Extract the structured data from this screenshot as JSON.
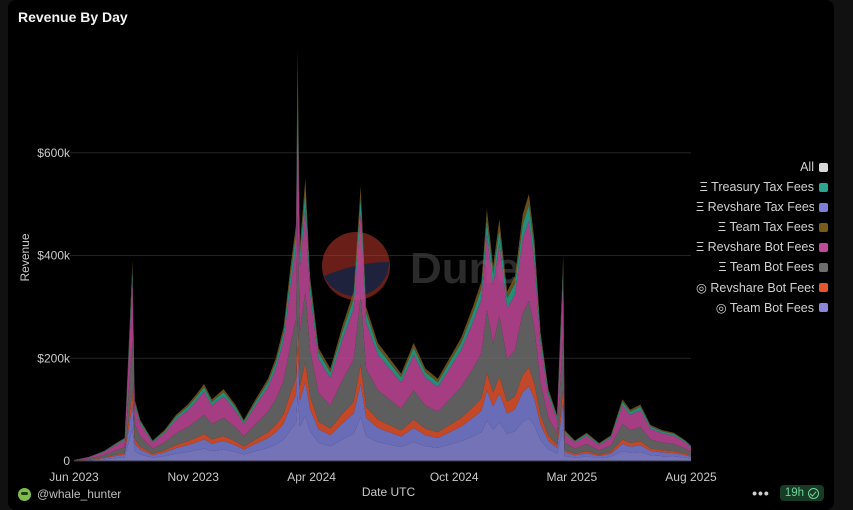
{
  "chart_title": "Revenue By Day",
  "watermark": {
    "text": "Dune",
    "icon": "dune-logo-icon"
  },
  "footer": {
    "user": "@whale_hunter",
    "more": "•••",
    "age": "19h",
    "status_icon": "check-circle-icon"
  },
  "colors": {
    "background": "#000000",
    "treasury_tax": "#2ba58f",
    "revshare_tax": "#7b7fd6",
    "team_tax": "#7a5a1d",
    "revshare_bot_eth": "#c2489a",
    "team_bot_eth": "#6e6e6e",
    "revshare_bot_sol": "#e5552f",
    "team_bot_sol": "#8a87d8"
  },
  "chart_data": {
    "type": "area",
    "title": "Revenue By Day",
    "xlabel": "Date UTC",
    "ylabel": "Revenue",
    "ylim": [
      0,
      800000
    ],
    "yticks": [
      0,
      200000,
      400000,
      600000
    ],
    "ytick_labels": [
      "0",
      "$200k",
      "$400k",
      "$600k"
    ],
    "xlim": [
      "2023-06-01",
      "2025-08-01"
    ],
    "xticks": [
      "2023-06-01",
      "2023-11-01",
      "2024-04-01",
      "2024-10-01",
      "2025-03-01",
      "2025-08-01"
    ],
    "xtick_labels": [
      "Jun 2023",
      "Nov 2023",
      "Apr 2024",
      "Oct 2024",
      "Mar 2025",
      "Aug 2025"
    ],
    "grid": true,
    "legend_position": "right",
    "legend": [
      {
        "label": "All",
        "color": "#d9d9d9"
      },
      {
        "label": "Ξ Treasury Tax Fees",
        "color": "#2ba58f"
      },
      {
        "label": "Ξ Revshare Tax Fees",
        "color": "#7b7fd6"
      },
      {
        "label": "Ξ Team Tax Fees",
        "color": "#7a5a1d"
      },
      {
        "label": "Ξ Revshare Bot Fees",
        "color": "#c2489a"
      },
      {
        "label": "Ξ Team Bot Fees",
        "color": "#6e6e6e"
      },
      {
        "label": "◎ Revshare Bot Fees",
        "color": "#e5552f"
      },
      {
        "label": "◎ Team Bot Fees",
        "color": "#8a87d8"
      }
    ],
    "stack_order": [
      "team_bot_sol",
      "revshare_tax",
      "revshare_bot_sol",
      "team_bot_eth",
      "revshare_bot_eth",
      "treasury_tax",
      "team_tax"
    ],
    "stack_shares": {
      "team_bot_sol": 0.16,
      "revshare_tax": 0.12,
      "revshare_bot_sol": 0.07,
      "team_bot_eth": 0.25,
      "revshare_bot_eth": 0.3,
      "treasury_tax": 0.06,
      "team_tax": 0.04
    },
    "total_series": [
      [
        "2023-06-01",
        2000
      ],
      [
        "2023-06-20",
        8000
      ],
      [
        "2023-07-10",
        20000
      ],
      [
        "2023-07-25",
        35000
      ],
      [
        "2023-08-05",
        45000
      ],
      [
        "2023-08-15",
        390000
      ],
      [
        "2023-08-18",
        120000
      ],
      [
        "2023-08-25",
        80000
      ],
      [
        "2023-09-10",
        40000
      ],
      [
        "2023-09-25",
        60000
      ],
      [
        "2023-10-10",
        90000
      ],
      [
        "2023-10-25",
        110000
      ],
      [
        "2023-11-05",
        130000
      ],
      [
        "2023-11-15",
        150000
      ],
      [
        "2023-11-25",
        120000
      ],
      [
        "2023-12-10",
        140000
      ],
      [
        "2023-12-25",
        110000
      ],
      [
        "2024-01-05",
        80000
      ],
      [
        "2024-01-20",
        120000
      ],
      [
        "2024-02-05",
        160000
      ],
      [
        "2024-02-15",
        200000
      ],
      [
        "2024-02-25",
        260000
      ],
      [
        "2024-03-05",
        380000
      ],
      [
        "2024-03-12",
        460000
      ],
      [
        "2024-03-14",
        800000
      ],
      [
        "2024-03-17",
        420000
      ],
      [
        "2024-03-24",
        550000
      ],
      [
        "2024-03-30",
        360000
      ],
      [
        "2024-04-10",
        220000
      ],
      [
        "2024-04-25",
        180000
      ],
      [
        "2024-05-10",
        260000
      ],
      [
        "2024-05-25",
        330000
      ],
      [
        "2024-06-03",
        535000
      ],
      [
        "2024-06-10",
        300000
      ],
      [
        "2024-06-25",
        230000
      ],
      [
        "2024-07-10",
        200000
      ],
      [
        "2024-07-25",
        170000
      ],
      [
        "2024-08-10",
        230000
      ],
      [
        "2024-08-25",
        180000
      ],
      [
        "2024-09-10",
        160000
      ],
      [
        "2024-09-25",
        200000
      ],
      [
        "2024-10-10",
        240000
      ],
      [
        "2024-10-25",
        300000
      ],
      [
        "2024-11-05",
        350000
      ],
      [
        "2024-11-12",
        490000
      ],
      [
        "2024-11-20",
        380000
      ],
      [
        "2024-11-28",
        470000
      ],
      [
        "2024-12-08",
        330000
      ],
      [
        "2024-12-18",
        360000
      ],
      [
        "2024-12-28",
        480000
      ],
      [
        "2025-01-05",
        520000
      ],
      [
        "2025-01-12",
        430000
      ],
      [
        "2025-01-20",
        250000
      ],
      [
        "2025-01-30",
        140000
      ],
      [
        "2025-02-10",
        90000
      ],
      [
        "2025-02-18",
        400000
      ],
      [
        "2025-02-20",
        60000
      ],
      [
        "2025-03-05",
        40000
      ],
      [
        "2025-03-20",
        55000
      ],
      [
        "2025-04-05",
        35000
      ],
      [
        "2025-04-20",
        50000
      ],
      [
        "2025-05-05",
        120000
      ],
      [
        "2025-05-15",
        100000
      ],
      [
        "2025-05-28",
        110000
      ],
      [
        "2025-06-10",
        70000
      ],
      [
        "2025-06-25",
        60000
      ],
      [
        "2025-07-10",
        55000
      ],
      [
        "2025-07-25",
        40000
      ],
      [
        "2025-08-01",
        30000
      ]
    ]
  }
}
